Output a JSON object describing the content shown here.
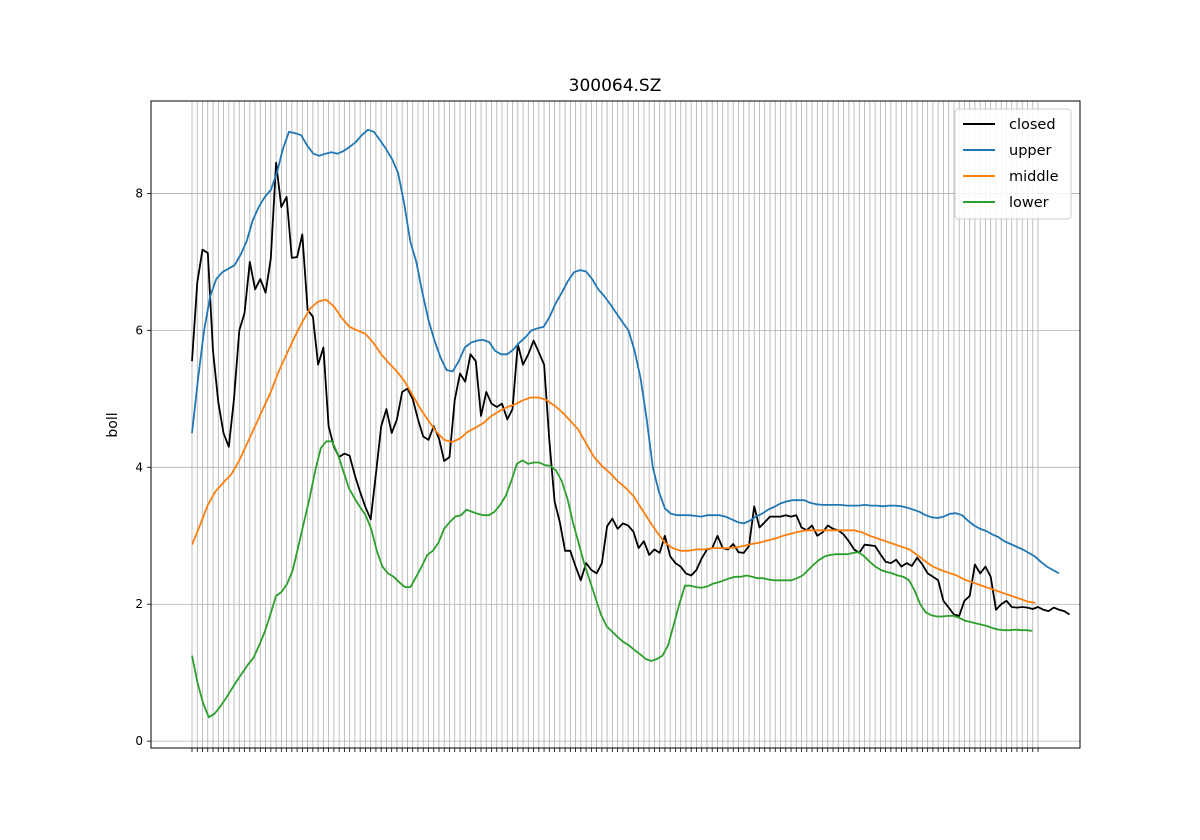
{
  "chart_data": {
    "type": "line",
    "title": "300064.SZ",
    "xlabel": "",
    "ylabel": "boll",
    "ylim": [
      -0.1,
      9.35
    ],
    "yticks": [
      0,
      2,
      4,
      6,
      8
    ],
    "x_tick_count": 162,
    "grid": true,
    "legend": "top-right",
    "series": [
      {
        "name": "closed",
        "color": "#000000",
        "values": [
          5.55,
          6.7,
          7.18,
          7.13,
          5.7,
          4.95,
          4.5,
          4.3,
          5.0,
          6.0,
          6.25,
          7.0,
          6.6,
          6.75,
          6.55,
          7.05,
          8.45,
          7.8,
          7.95,
          7.06,
          7.07,
          7.4,
          6.3,
          6.2,
          5.5,
          5.75,
          4.6,
          4.3,
          4.15,
          4.2,
          4.17,
          3.88,
          3.64,
          3.42,
          3.24,
          3.9,
          4.6,
          4.85,
          4.5,
          4.7,
          5.1,
          5.15,
          5.0,
          4.7,
          4.45,
          4.4,
          4.6,
          4.42,
          4.09,
          4.15,
          4.98,
          5.37,
          5.25,
          5.65,
          5.55,
          4.75,
          5.1,
          4.93,
          4.88,
          4.93,
          4.7,
          4.85,
          5.8,
          5.5,
          5.65,
          5.85,
          5.68,
          5.5,
          4.4,
          3.5,
          3.2,
          2.78,
          2.78,
          2.55,
          2.35,
          2.6,
          2.5,
          2.45,
          2.6,
          3.14,
          3.25,
          3.1,
          3.18,
          3.15,
          3.06,
          2.82,
          2.92,
          2.72,
          2.8,
          2.75,
          3.0,
          2.7,
          2.6,
          2.55,
          2.45,
          2.42,
          2.5,
          2.67,
          2.8,
          2.82,
          3.0,
          2.82,
          2.8,
          2.88,
          2.76,
          2.75,
          2.85,
          3.43,
          3.12,
          3.2,
          3.28,
          3.28,
          3.28,
          3.3,
          3.28,
          3.3,
          3.12,
          3.08,
          3.15,
          3.0,
          3.05,
          3.15,
          3.1,
          3.08,
          3.02,
          2.92,
          2.8,
          2.75,
          2.87,
          2.86,
          2.85,
          2.73,
          2.62,
          2.6,
          2.65,
          2.55,
          2.6,
          2.56,
          2.68,
          2.58,
          2.45,
          2.4,
          2.35,
          2.05,
          1.95,
          1.85,
          1.83,
          2.05,
          2.12,
          2.58,
          2.45,
          2.55,
          2.4,
          1.92,
          2.0,
          2.05,
          1.96,
          1.95,
          1.96,
          1.95,
          1.93,
          1.96,
          1.92,
          1.9,
          1.95,
          1.92,
          1.9,
          1.85
        ]
      },
      {
        "name": "upper",
        "color": "#1f77b4",
        "values": [
          4.5,
          5.3,
          6.0,
          6.5,
          6.75,
          6.85,
          6.9,
          6.95,
          7.1,
          7.3,
          7.6,
          7.8,
          7.95,
          8.05,
          8.3,
          8.65,
          8.9,
          8.88,
          8.85,
          8.7,
          8.58,
          8.55,
          8.58,
          8.6,
          8.58,
          8.62,
          8.68,
          8.75,
          8.85,
          8.93,
          8.9,
          8.78,
          8.65,
          8.5,
          8.3,
          7.85,
          7.3,
          7.0,
          6.55,
          6.15,
          5.85,
          5.6,
          5.42,
          5.4,
          5.55,
          5.75,
          5.82,
          5.85,
          5.86,
          5.83,
          5.7,
          5.65,
          5.65,
          5.72,
          5.82,
          5.9,
          6.0,
          6.03,
          6.05,
          6.2,
          6.4,
          6.55,
          6.72,
          6.85,
          6.88,
          6.86,
          6.75,
          6.6,
          6.5,
          6.38,
          6.25,
          6.12,
          6.0,
          5.7,
          5.3,
          4.7,
          4.0,
          3.65,
          3.4,
          3.32,
          3.3,
          3.3,
          3.3,
          3.29,
          3.28,
          3.3,
          3.3,
          3.3,
          3.28,
          3.24,
          3.2,
          3.18,
          3.22,
          3.28,
          3.32,
          3.38,
          3.42,
          3.47,
          3.5,
          3.52,
          3.52,
          3.52,
          3.48,
          3.46,
          3.45,
          3.45,
          3.45,
          3.45,
          3.44,
          3.44,
          3.44,
          3.45,
          3.44,
          3.44,
          3.43,
          3.44,
          3.44,
          3.43,
          3.41,
          3.38,
          3.35,
          3.3,
          3.27,
          3.26,
          3.28,
          3.32,
          3.33,
          3.3,
          3.22,
          3.15,
          3.1,
          3.07,
          3.02,
          2.98,
          2.92,
          2.88,
          2.84,
          2.8,
          2.75,
          2.7,
          2.62,
          2.55,
          2.5,
          2.45
        ],
        "x_start": 0,
        "x_step": 1.1538
      },
      {
        "name": "middle",
        "color": "#ff7f0e",
        "values": [
          2.87,
          3.15,
          3.45,
          3.65,
          3.78,
          3.9,
          4.1,
          4.35,
          4.6,
          4.85,
          5.1,
          5.4,
          5.65,
          5.9,
          6.12,
          6.32,
          6.42,
          6.45,
          6.35,
          6.18,
          6.05,
          6.0,
          5.95,
          5.82,
          5.65,
          5.52,
          5.4,
          5.25,
          5.05,
          4.85,
          4.68,
          4.52,
          4.4,
          4.37,
          4.42,
          4.52,
          4.58,
          4.65,
          4.75,
          4.82,
          4.88,
          4.92,
          4.98,
          5.02,
          5.02,
          4.98,
          4.9,
          4.8,
          4.68,
          4.55,
          4.35,
          4.15,
          4.02,
          3.92,
          3.8,
          3.7,
          3.58,
          3.4,
          3.22,
          3.05,
          2.9,
          2.82,
          2.78,
          2.78,
          2.8,
          2.8,
          2.82,
          2.82,
          2.82,
          2.83,
          2.85,
          2.88,
          2.9,
          2.93,
          2.96,
          3.0,
          3.03,
          3.06,
          3.08,
          3.08,
          3.08,
          3.08,
          3.08,
          3.08,
          3.08,
          3.05,
          3.0,
          2.96,
          2.92,
          2.88,
          2.84,
          2.8,
          2.72,
          2.63,
          2.55,
          2.5,
          2.46,
          2.42,
          2.36,
          2.32,
          2.28,
          2.24,
          2.2,
          2.16,
          2.12,
          2.08,
          2.04,
          2.02
        ],
        "x_start": 0,
        "x_step": 1.5
      },
      {
        "name": "lower",
        "color": "#2ca02c",
        "values": [
          1.25,
          0.85,
          0.55,
          0.35,
          0.4,
          0.5,
          0.62,
          0.75,
          0.88,
          1.0,
          1.12,
          1.22,
          1.4,
          1.6,
          1.85,
          2.12,
          2.18,
          2.3,
          2.5,
          2.85,
          3.2,
          3.55,
          3.95,
          4.28,
          4.38,
          4.38,
          4.2,
          3.95,
          3.7,
          3.55,
          3.42,
          3.3,
          3.1,
          2.78,
          2.55,
          2.45,
          2.4,
          2.32,
          2.25,
          2.25,
          2.4,
          2.55,
          2.72,
          2.78,
          2.9,
          3.1,
          3.2,
          3.28,
          3.3,
          3.38,
          3.35,
          3.32,
          3.3,
          3.3,
          3.35,
          3.45,
          3.58,
          3.8,
          4.05,
          4.1,
          4.05,
          4.07,
          4.07,
          4.03,
          4.02,
          3.95,
          3.8,
          3.55,
          3.2,
          2.9,
          2.6,
          2.35,
          2.1,
          1.85,
          1.68,
          1.6,
          1.52,
          1.45,
          1.4,
          1.33,
          1.27,
          1.2,
          1.17,
          1.2,
          1.25,
          1.4,
          1.7,
          2.0,
          2.27,
          2.27,
          2.25,
          2.24,
          2.26,
          2.3,
          2.32,
          2.35,
          2.38,
          2.4,
          2.4,
          2.42,
          2.4,
          2.38,
          2.38,
          2.36,
          2.35,
          2.35,
          2.35,
          2.35,
          2.38,
          2.42,
          2.5,
          2.58,
          2.65,
          2.7,
          2.72,
          2.73,
          2.73,
          2.73,
          2.75,
          2.76,
          2.7,
          2.62,
          2.55,
          2.5,
          2.47,
          2.45,
          2.42,
          2.4,
          2.35,
          2.2,
          2.0,
          1.88,
          1.84,
          1.82,
          1.82,
          1.83,
          1.83,
          1.8,
          1.76,
          1.74,
          1.72,
          1.7,
          1.68,
          1.65,
          1.63,
          1.62,
          1.62,
          1.63,
          1.62,
          1.62,
          1.61
        ],
        "x_start": 0,
        "x_step": 1.066
      }
    ]
  }
}
